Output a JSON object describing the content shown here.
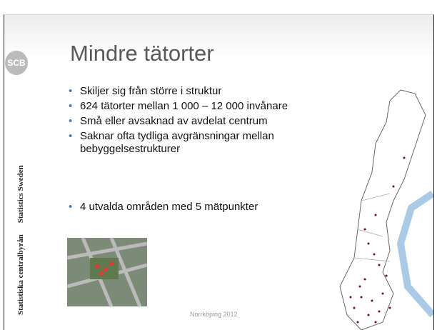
{
  "logo": "SCB",
  "sidebar": {
    "name": "Statistiska centralbyrån",
    "name_en": "Statistics Sweden"
  },
  "title": "Mindre tätorter",
  "bullets": [
    "Skiljer sig från större i struktur",
    "624 tätorter mellan 1 000 – 12 000 invånare",
    "Små eller avsaknad av avdelat centrum",
    "Saknar ofta tydliga avgränsningar mellan bebyggelsestrukturer"
  ],
  "bullets2": [
    "4 utvalda områden med 5 mätpunkter"
  ],
  "footer": "Norrköping 2012"
}
